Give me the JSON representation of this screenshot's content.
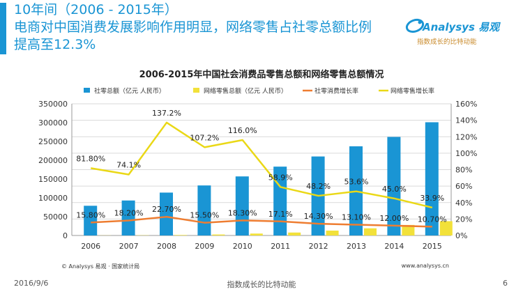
{
  "theme": {
    "accent": "#1a95d4",
    "logo_brand_color": "#1a95d4",
    "logo_tag_color": "#c98a2a",
    "bar_total": "#1a95d4",
    "bar_online": "#f2e13a",
    "line_total": "#ee7d31",
    "line_online": "#f2e13a",
    "line_online_stroke": "#ead816",
    "grid": "#d9d9d9"
  },
  "headline": {
    "line1": "10年间（2006 - 2015年）",
    "line2": "电商对中国消费发展影响作用明显，网络零售占社零总额比例",
    "line3": "提高至12.3%"
  },
  "logo": {
    "brand": "Analysys 易观",
    "tagline": "指数成长的比特动能",
    "icon": "analysys-swirl-icon"
  },
  "chart_data": {
    "type": "bar",
    "title": "2006-2015年中国社会消费品零售总额和网络零售总额情况",
    "categories": [
      "2006",
      "2007",
      "2008",
      "2009",
      "2010",
      "2011",
      "2012",
      "2013",
      "2014",
      "2015"
    ],
    "series": [
      {
        "name": "社零总额（亿元 人民币）",
        "kind": "bar",
        "axis": "left",
        "values": [
          79000,
          93000,
          114000,
          133000,
          157000,
          183000,
          210000,
          237000,
          262000,
          301000
        ]
      },
      {
        "name": "网络零售总额（亿元 人民币）",
        "kind": "bar",
        "axis": "left",
        "values": [
          300,
          560,
          1300,
          2600,
          5100,
          7800,
          13000,
          19000,
          28000,
          38000
        ]
      },
      {
        "name": "社零消费增长率",
        "kind": "line",
        "axis": "right",
        "values": [
          15.8,
          18.2,
          22.7,
          15.5,
          18.3,
          17.1,
          14.3,
          13.1,
          12.0,
          10.7
        ],
        "labels": [
          "15.80%",
          "18.20%",
          "22.70%",
          "15.50%",
          "18.30%",
          "17.1%",
          "14.30%",
          "13.10%",
          "12.00%",
          "10.70%"
        ]
      },
      {
        "name": "网络零售增长率",
        "kind": "line",
        "axis": "right",
        "values": [
          81.8,
          74.1,
          137.2,
          107.2,
          116.0,
          58.9,
          48.2,
          53.6,
          45.0,
          33.9
        ],
        "labels": [
          "81.80%",
          "74.1%",
          "137.2%",
          "107.2%",
          "116.0%",
          "58.9%",
          "48.2%",
          "53.6%",
          "45.0%",
          "33.9%"
        ]
      }
    ],
    "y_left": {
      "min": 0,
      "max": 350000,
      "step": 50000,
      "ticks": [
        "0",
        "50000",
        "100000",
        "150000",
        "200000",
        "250000",
        "300000",
        "350000"
      ]
    },
    "y_right": {
      "min": 0,
      "max": 160,
      "step": 20,
      "ticks": [
        "0%",
        "20%",
        "40%",
        "60%",
        "80%",
        "100%",
        "120%",
        "140%",
        "160%"
      ]
    },
    "grid": true,
    "legend": "top"
  },
  "footer": {
    "source": "© Analysys 易观 · 国家统计局",
    "website": "www.analysys.cn",
    "date": "2016/9/6",
    "slogan": "指数成长的比特动能",
    "page": "6"
  }
}
